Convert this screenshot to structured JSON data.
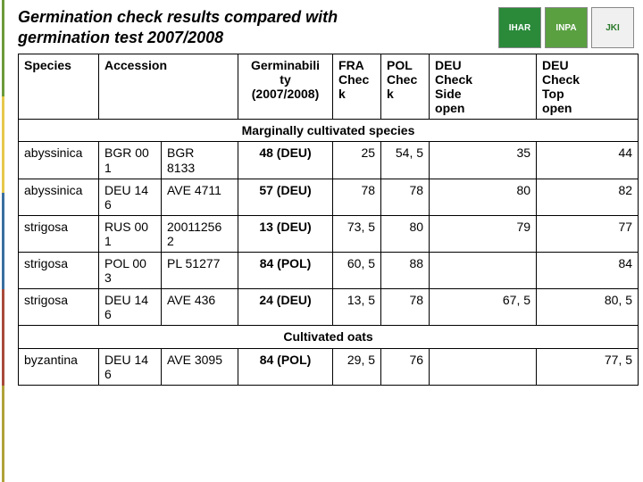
{
  "title": "Germination check results compared with germination test 2007/2008",
  "logos": [
    "IHAR",
    "INPA",
    "JKI"
  ],
  "headers": {
    "species": "Species",
    "accession": "Accession",
    "germinability": "Germinabili\nty\n(2007/2008)",
    "fra": "FRA\nChec\nk",
    "pol": "POL\nChec\nk",
    "deu_side": "DEU\nCheck\nSide\nopen",
    "deu_top": "DEU\nCheck\nTop\nopen"
  },
  "sections": [
    {
      "label": "Marginally cultivated species",
      "rows": [
        {
          "species": "abyssinica",
          "acc1": "BGR 00\n1",
          "acc2": "BGR\n8133",
          "germ": "48 (DEU)",
          "fra": "25",
          "pol": "54, 5",
          "deu_side": "35",
          "deu_top": "44"
        },
        {
          "species": "abyssinica",
          "acc1": "DEU 14\n6",
          "acc2": "AVE 4711",
          "germ": "57 (DEU)",
          "fra": "78",
          "pol": "78",
          "deu_side": "80",
          "deu_top": "82"
        },
        {
          "species": "strigosa",
          "acc1": "RUS 00\n1",
          "acc2": "20011256\n2",
          "germ": "13 (DEU)",
          "fra": "73, 5",
          "pol": "80",
          "deu_side": "79",
          "deu_top": "77"
        },
        {
          "species": "strigosa",
          "acc1": "POL 00\n3",
          "acc2": "PL 51277",
          "germ": "84 (POL)",
          "fra": "60, 5",
          "pol": "88",
          "deu_side": "",
          "deu_top": "84"
        },
        {
          "species": "strigosa",
          "acc1": "DEU 14\n6",
          "acc2": "AVE 436",
          "germ": "24 (DEU)",
          "fra": "13, 5",
          "pol": "78",
          "deu_side": "67, 5",
          "deu_top": "80, 5"
        }
      ]
    },
    {
      "label": "Cultivated oats",
      "rows": [
        {
          "species": "byzantina",
          "acc1": "DEU 14\n6",
          "acc2": "AVE 3095",
          "germ": "84 (POL)",
          "fra": "29, 5",
          "pol": "76",
          "deu_side": "",
          "deu_top": "77, 5"
        }
      ]
    }
  ]
}
